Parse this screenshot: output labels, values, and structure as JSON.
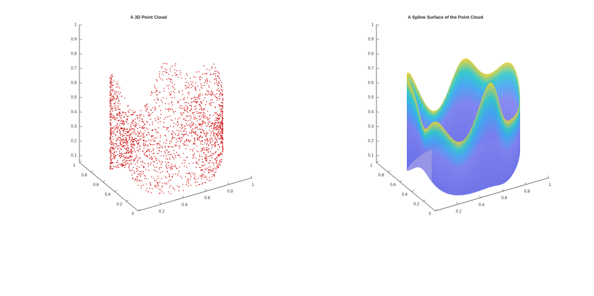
{
  "figure": {
    "background": "#ffffff",
    "axis_color": "#555555"
  },
  "chart_data": [
    {
      "type": "scatter",
      "title": "A 3D Point Cloud",
      "xlabel": "",
      "ylabel": "",
      "zlabel": "",
      "xlim": [
        0,
        1
      ],
      "ylim": [
        0,
        1
      ],
      "zlim": [
        0.05,
        1
      ],
      "x_ticks": [
        "0.2",
        "0.4",
        "0.6",
        "0.8",
        "1"
      ],
      "y_ticks": [
        "0",
        "0.2",
        "0.4",
        "0.6",
        "0.8",
        "1"
      ],
      "z_ticks": [
        "0.1",
        "0.2",
        "0.3",
        "0.4",
        "0.5",
        "0.6",
        "0.7",
        "0.8",
        "0.9",
        "1"
      ],
      "marker_color": "#d42020",
      "grid": false,
      "series": [
        {
          "description_of_shape": "closed wavy wall sampled on a ring around the unit square",
          "points": [
            [
              0.5,
              0.1,
              0.35
            ],
            [
              0.65,
              0.12,
              0.4
            ],
            [
              0.8,
              0.2,
              0.45
            ],
            [
              0.88,
              0.35,
              0.55
            ],
            [
              0.9,
              0.5,
              0.62
            ],
            [
              0.88,
              0.65,
              0.58
            ],
            [
              0.8,
              0.8,
              0.5
            ],
            [
              0.65,
              0.88,
              0.45
            ],
            [
              0.5,
              0.9,
              0.48
            ],
            [
              0.35,
              0.88,
              0.6
            ],
            [
              0.2,
              0.8,
              0.7
            ],
            [
              0.12,
              0.65,
              0.65
            ],
            [
              0.1,
              0.5,
              0.55
            ],
            [
              0.12,
              0.35,
              0.5
            ],
            [
              0.2,
              0.2,
              0.45
            ],
            [
              0.35,
              0.12,
              0.4
            ]
          ]
        }
      ]
    },
    {
      "type": "surface",
      "title": "A Spline Surface of the Point Cloud",
      "xlabel": "",
      "ylabel": "",
      "zlabel": "",
      "xlim": [
        0,
        1
      ],
      "ylim": [
        0,
        1
      ],
      "zlim": [
        0.05,
        1
      ],
      "x_ticks": [
        "0.2",
        "0.4",
        "0.6",
        "0.8",
        "1"
      ],
      "y_ticks": [
        "0",
        "0.2",
        "0.4",
        "0.6",
        "0.8",
        "1"
      ],
      "z_ticks": [
        "0.1",
        "0.2",
        "0.3",
        "0.4",
        "0.5",
        "0.6",
        "0.7",
        "0.8",
        "0.9",
        "1"
      ],
      "colormap": [
        "#6a6fe8",
        "#7b7ff0",
        "#3ea8f0",
        "#2fc8c8",
        "#f0d030"
      ],
      "grid": false
    }
  ]
}
